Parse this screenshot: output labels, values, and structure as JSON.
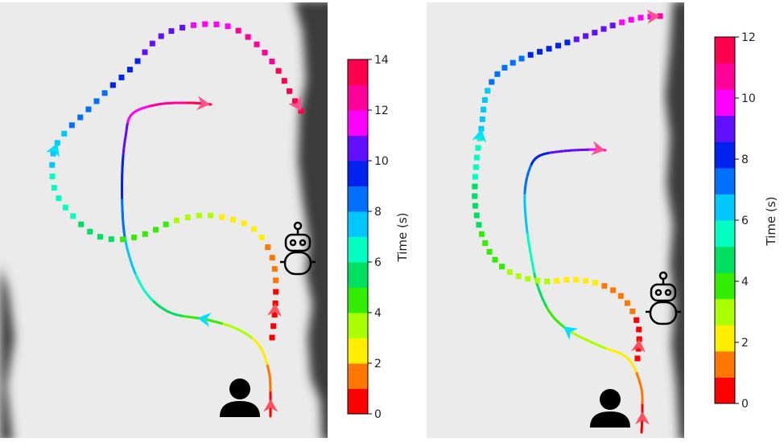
{
  "panels": [
    {
      "name": "left",
      "colorbar": {
        "label": "Time (s)",
        "max": 14,
        "tick_labels": [
          "0",
          "2",
          "4",
          "6",
          "8",
          "10",
          "12",
          "14"
        ],
        "colors": [
          "#ff0000",
          "#ff7700",
          "#ffee00",
          "#aaff00",
          "#33ee00",
          "#00e060",
          "#00ffc0",
          "#00c8ff",
          "#0070ff",
          "#0022ee",
          "#6010ff",
          "#ff00ff",
          "#ff0099",
          "#ff0050"
        ]
      }
    },
    {
      "name": "right",
      "colorbar": {
        "label": "Time (s)",
        "max": 12,
        "tick_labels": [
          "0",
          "2",
          "4",
          "6",
          "8",
          "10",
          "12"
        ],
        "colors": [
          "#ff0000",
          "#ff7700",
          "#ffee00",
          "#aaff00",
          "#33ee00",
          "#00e060",
          "#00ffc0",
          "#00c8ff",
          "#0070ff",
          "#0022ee",
          "#6010ff",
          "#ff00ff",
          "#ff0099",
          "#ff0050"
        ]
      }
    }
  ],
  "icons": [
    "person-icon",
    "robot-icon"
  ],
  "colors": {
    "background": "#ebebeb",
    "wall": "#3a3a3a",
    "arrow": "#ff6070"
  }
}
